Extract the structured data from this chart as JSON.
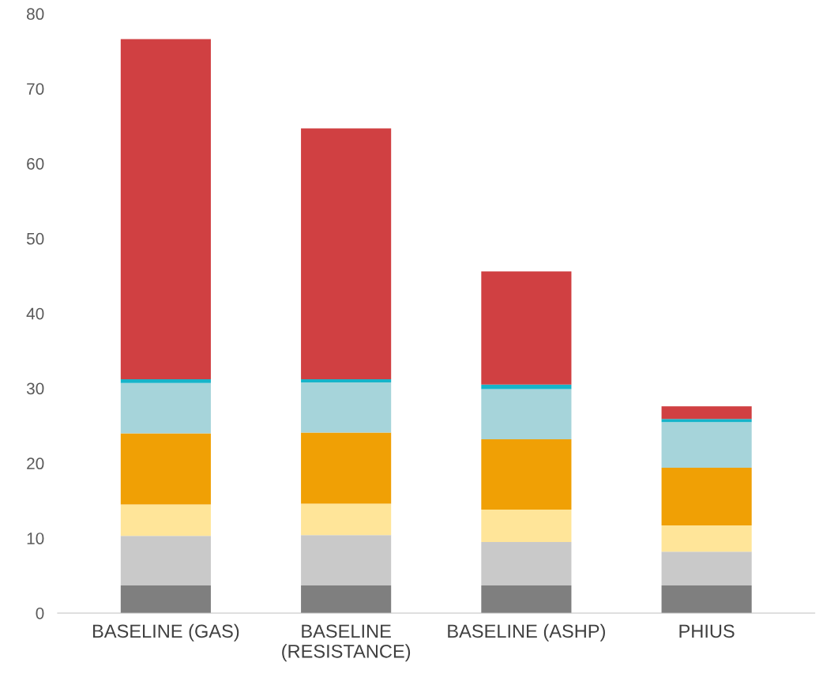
{
  "chart_data": {
    "type": "bar",
    "stacked": true,
    "categories": [
      "BASELINE (GAS)",
      "BASELINE\n(RESISTANCE)",
      "BASELINE (ASHP)",
      "PHIUS"
    ],
    "series": [
      {
        "color": "#7f7f7f",
        "values": [
          3.7,
          3.7,
          3.7,
          3.7
        ]
      },
      {
        "color": "#c9c9c9",
        "values": [
          6.6,
          6.7,
          5.8,
          4.5
        ]
      },
      {
        "color": "#ffe599",
        "values": [
          4.2,
          4.2,
          4.3,
          3.5
        ]
      },
      {
        "color": "#f0a005",
        "values": [
          9.5,
          9.5,
          9.4,
          7.7
        ]
      },
      {
        "color": "#a6d4da",
        "values": [
          6.7,
          6.7,
          6.7,
          6.1
        ]
      },
      {
        "color": "#17b4c9",
        "values": [
          0.5,
          0.4,
          0.6,
          0.4
        ]
      },
      {
        "color": "#d04042",
        "values": [
          45.4,
          33.5,
          15.1,
          1.7
        ]
      }
    ],
    "ylim": [
      0,
      80
    ],
    "yticks": [
      0,
      10,
      20,
      30,
      40,
      50,
      60,
      70,
      80
    ],
    "grid": false
  }
}
